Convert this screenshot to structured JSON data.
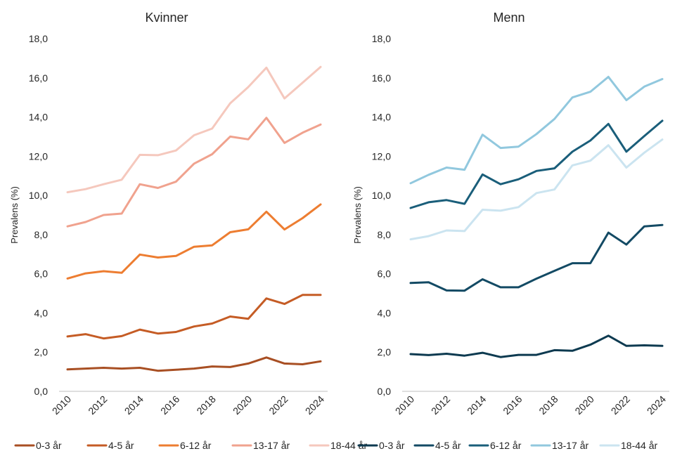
{
  "chart_data": [
    {
      "type": "line",
      "title": "Kvinner",
      "xlabel": "",
      "ylabel": "Prevalens (%)",
      "ylim": [
        0,
        18
      ],
      "yticks": [
        "0,0",
        "2,0",
        "4,0",
        "6,0",
        "8,0",
        "10,0",
        "12,0",
        "14,0",
        "16,0",
        "18,0"
      ],
      "xticks": [
        "2010",
        "2012",
        "2014",
        "2016",
        "2018",
        "2020",
        "2022",
        "2024"
      ],
      "x": [
        2010,
        2011,
        2012,
        2013,
        2014,
        2015,
        2016,
        2017,
        2018,
        2019,
        2020,
        2021,
        2022,
        2023,
        2024
      ],
      "grid": false,
      "legend": "bottom",
      "series": [
        {
          "name": "0-3 år",
          "color": "#a84f23",
          "values": [
            1.12,
            1.16,
            1.2,
            1.16,
            1.2,
            1.05,
            1.1,
            1.16,
            1.27,
            1.24,
            1.42,
            1.73,
            1.42,
            1.38,
            1.53
          ]
        },
        {
          "name": "4-5 år",
          "color": "#c55c25",
          "values": [
            2.8,
            2.92,
            2.7,
            2.82,
            3.15,
            2.95,
            3.03,
            3.31,
            3.46,
            3.82,
            3.7,
            4.74,
            4.46,
            4.92,
            4.92
          ]
        },
        {
          "name": "6-12 år",
          "color": "#ed7d31",
          "values": [
            5.76,
            6.02,
            6.13,
            6.05,
            6.98,
            6.83,
            6.91,
            7.38,
            7.45,
            8.12,
            8.27,
            9.17,
            8.26,
            8.84,
            9.54
          ]
        },
        {
          "name": "13-17 år",
          "color": "#f0a28e",
          "values": [
            8.42,
            8.64,
            9.0,
            9.07,
            10.57,
            10.38,
            10.7,
            11.62,
            12.1,
            13.0,
            12.86,
            13.96,
            12.68,
            13.2,
            13.62
          ]
        },
        {
          "name": "18-44 år",
          "color": "#f5c8bd",
          "values": [
            10.16,
            10.32,
            10.57,
            10.8,
            12.07,
            12.05,
            12.29,
            13.07,
            13.41,
            14.7,
            15.53,
            16.52,
            14.95,
            15.75,
            16.56
          ]
        }
      ]
    },
    {
      "type": "line",
      "title": "Menn",
      "xlabel": "",
      "ylabel": "Prevalens (%)",
      "ylim": [
        0,
        18
      ],
      "yticks": [
        "0,0",
        "2,0",
        "4,0",
        "6,0",
        "8,0",
        "10,0",
        "12,0",
        "14,0",
        "16,0",
        "18,0"
      ],
      "xticks": [
        "2010",
        "2012",
        "2014",
        "2016",
        "2018",
        "2020",
        "2022",
        "2024"
      ],
      "x": [
        2010,
        2011,
        2012,
        2013,
        2014,
        2015,
        2016,
        2017,
        2018,
        2019,
        2020,
        2021,
        2022,
        2023,
        2024
      ],
      "grid": false,
      "legend": "bottom",
      "series": [
        {
          "name": "0-3 år",
          "color": "#0d3a50",
          "values": [
            1.9,
            1.85,
            1.92,
            1.82,
            1.97,
            1.75,
            1.86,
            1.86,
            2.1,
            2.07,
            2.38,
            2.84,
            2.32,
            2.35,
            2.32
          ]
        },
        {
          "name": "4-5 år",
          "color": "#134a64",
          "values": [
            5.53,
            5.57,
            5.15,
            5.14,
            5.72,
            5.31,
            5.31,
            5.75,
            6.15,
            6.54,
            6.54,
            8.1,
            7.49,
            8.42,
            8.49
          ]
        },
        {
          "name": "6-12 år",
          "color": "#1a5e7a",
          "values": [
            9.36,
            9.65,
            9.76,
            9.57,
            11.07,
            10.57,
            10.82,
            11.25,
            11.38,
            12.23,
            12.8,
            13.65,
            12.23,
            13.03,
            13.81
          ]
        },
        {
          "name": "13-17 år",
          "color": "#91c8de",
          "values": [
            10.62,
            11.05,
            11.42,
            11.31,
            13.1,
            12.42,
            12.49,
            13.13,
            13.9,
            15.0,
            15.29,
            16.05,
            14.86,
            15.55,
            15.94
          ]
        },
        {
          "name": "18-44 år",
          "color": "#cbe4f0",
          "values": [
            7.76,
            7.92,
            8.21,
            8.18,
            9.27,
            9.22,
            9.4,
            10.12,
            10.3,
            11.53,
            11.77,
            12.56,
            11.42,
            12.18,
            12.85
          ]
        }
      ]
    }
  ]
}
